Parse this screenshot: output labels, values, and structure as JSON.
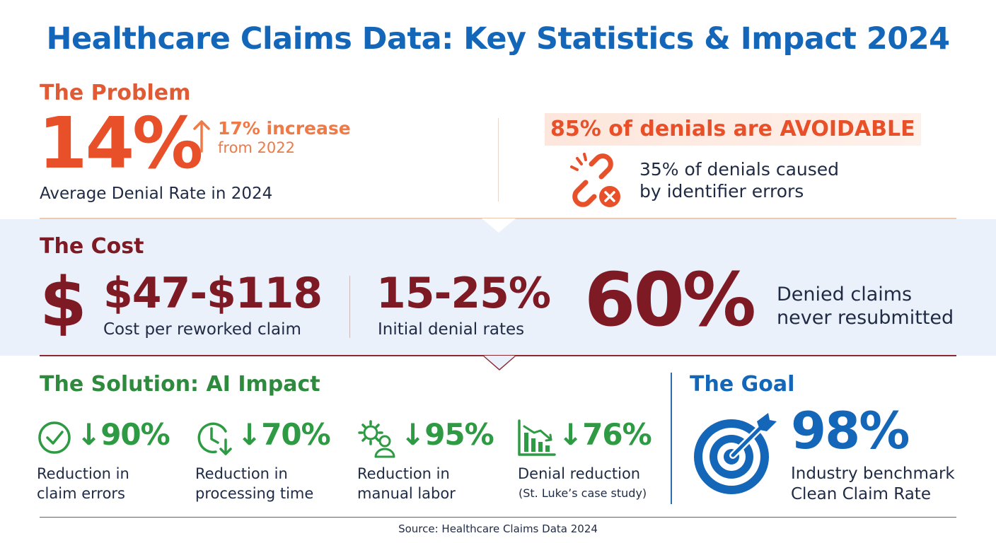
{
  "title": "Healthcare Claims Data: Key Statistics & Impact 2024",
  "problem": {
    "heading": "The Problem",
    "denial_rate": "14%",
    "increase_line1": "17% increase",
    "increase_line2": "from 2022",
    "denial_rate_label": "Average Denial Rate in 2024",
    "avoidable": "85% of denials are AVOIDABLE",
    "identifier_line1": "35% of denials caused",
    "identifier_line2": "by identifier errors",
    "icons": [
      "up-arrow-icon",
      "broken-link-icon",
      "error-x-icon"
    ]
  },
  "cost": {
    "heading": "The Cost",
    "dollar_symbol": "$",
    "rework_cost": "$47-$118",
    "rework_label": "Cost per reworked claim",
    "initial_rates": "15-25%",
    "initial_label": "Initial denial rates",
    "never_resubmitted": "60%",
    "never_line1": "Denied claims",
    "never_line2": "never resubmitted"
  },
  "solution": {
    "heading": "The Solution: AI Impact",
    "metrics": [
      {
        "icon": "check-circle-icon",
        "value": "↓90%",
        "line1": "Reduction in",
        "line2": "claim errors"
      },
      {
        "icon": "clock-down-icon",
        "value": "↓70%",
        "line1": "Reduction in",
        "line2": "processing time"
      },
      {
        "icon": "gear-person-icon",
        "value": "↓95%",
        "line1": "Reduction in",
        "line2": "manual labor"
      },
      {
        "icon": "bar-chart-down-icon",
        "value": "↓76%",
        "line1": "Denial reduction",
        "line2": "(St. Luke’s case study)"
      }
    ]
  },
  "goal": {
    "heading": "The Goal",
    "value": "98%",
    "line1": "Industry benchmark",
    "line2": "Clean Claim Rate",
    "icon": "target-icon"
  },
  "source": "Source: Healthcare Claims Data 2024",
  "colors": {
    "title_blue": "#1466b8",
    "problem_orange": "#e8502a",
    "cost_maroon": "#7e1a24",
    "solution_green": "#2e9a44",
    "cost_band": "#eaf1fa"
  }
}
